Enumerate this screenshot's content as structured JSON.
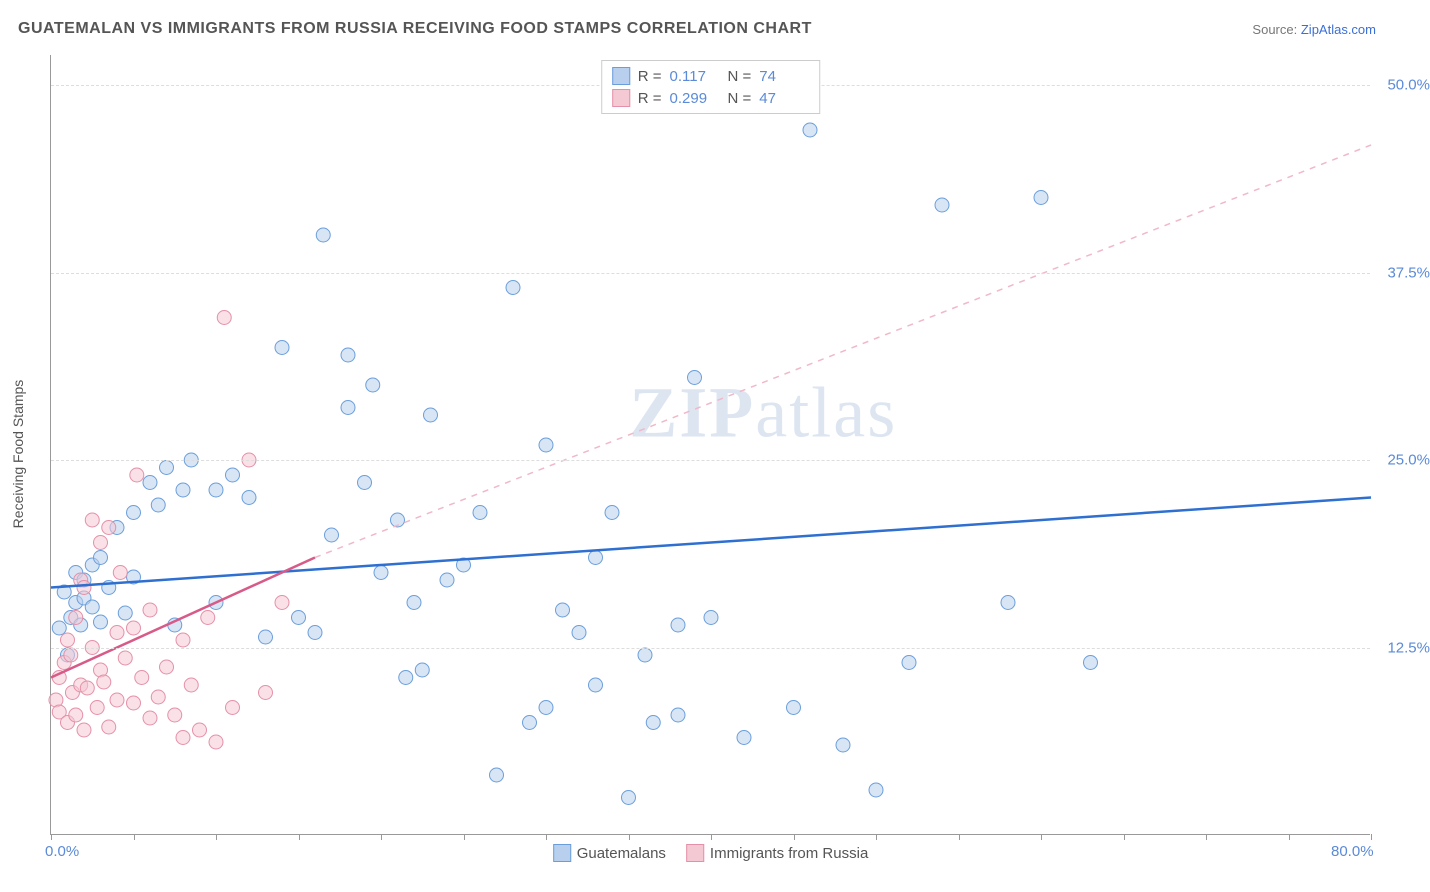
{
  "title": "GUATEMALAN VS IMMIGRANTS FROM RUSSIA RECEIVING FOOD STAMPS CORRELATION CHART",
  "source_label": "Source:",
  "source_name": "ZipAtlas.com",
  "y_axis_title": "Receiving Food Stamps",
  "watermark": "ZIPatlas",
  "chart": {
    "type": "scatter",
    "xlim": [
      0,
      80
    ],
    "ylim": [
      0,
      52
    ],
    "x_ticks": [
      0,
      5,
      10,
      15,
      20,
      25,
      30,
      35,
      40,
      45,
      50,
      55,
      60,
      65,
      70,
      75,
      80
    ],
    "x_tick_labels": {
      "0": "0.0%",
      "80": "80.0%"
    },
    "y_gridlines": [
      12.5,
      25.0,
      37.5,
      50.0
    ],
    "y_tick_labels": [
      "12.5%",
      "25.0%",
      "37.5%",
      "50.0%"
    ],
    "background_color": "#ffffff",
    "grid_color": "#dddddd",
    "axis_color": "#999999",
    "label_color": "#5a8ad8",
    "series": [
      {
        "name": "Guatemalans",
        "color_fill": "#b8d0ed",
        "color_stroke": "#6a9edb",
        "marker_radius": 7,
        "fill_opacity": 0.55,
        "R": "0.117",
        "N": "74",
        "trend": {
          "x1": 0,
          "y1": 16.5,
          "x2": 80,
          "y2": 22.5,
          "color": "#2e6fd0",
          "width": 2.5,
          "dash": "none"
        },
        "points": [
          [
            0.5,
            13.8
          ],
          [
            0.8,
            16.2
          ],
          [
            1.0,
            12.0
          ],
          [
            1.2,
            14.5
          ],
          [
            1.5,
            15.5
          ],
          [
            1.5,
            17.5
          ],
          [
            1.8,
            14.0
          ],
          [
            2.0,
            15.8
          ],
          [
            2.0,
            17.0
          ],
          [
            2.5,
            15.2
          ],
          [
            2.5,
            18.0
          ],
          [
            3.0,
            14.2
          ],
          [
            3.0,
            18.5
          ],
          [
            3.5,
            16.5
          ],
          [
            4.0,
            20.5
          ],
          [
            4.5,
            14.8
          ],
          [
            5.0,
            21.5
          ],
          [
            5.0,
            17.2
          ],
          [
            6.0,
            23.5
          ],
          [
            6.5,
            22.0
          ],
          [
            7.0,
            24.5
          ],
          [
            7.5,
            14.0
          ],
          [
            8.0,
            23.0
          ],
          [
            8.5,
            25.0
          ],
          [
            10.0,
            15.5
          ],
          [
            10.0,
            23.0
          ],
          [
            11.0,
            24.0
          ],
          [
            12.0,
            22.5
          ],
          [
            13.0,
            13.2
          ],
          [
            14.0,
            32.5
          ],
          [
            15.0,
            14.5
          ],
          [
            16.0,
            13.5
          ],
          [
            16.5,
            40.0
          ],
          [
            17.0,
            20.0
          ],
          [
            18.0,
            28.5
          ],
          [
            18.0,
            32.0
          ],
          [
            19.0,
            23.5
          ],
          [
            19.5,
            30.0
          ],
          [
            20.0,
            17.5
          ],
          [
            21.0,
            21.0
          ],
          [
            21.5,
            10.5
          ],
          [
            22.0,
            15.5
          ],
          [
            22.5,
            11.0
          ],
          [
            23.0,
            28.0
          ],
          [
            24.0,
            17.0
          ],
          [
            25.0,
            18.0
          ],
          [
            26.0,
            21.5
          ],
          [
            27.0,
            4.0
          ],
          [
            28.0,
            36.5
          ],
          [
            29.0,
            7.5
          ],
          [
            30.0,
            8.5
          ],
          [
            30.0,
            26.0
          ],
          [
            31.0,
            15.0
          ],
          [
            32.0,
            13.5
          ],
          [
            33.0,
            18.5
          ],
          [
            33.0,
            10.0
          ],
          [
            34.0,
            21.5
          ],
          [
            35.0,
            2.5
          ],
          [
            36.0,
            12.0
          ],
          [
            36.5,
            7.5
          ],
          [
            38.0,
            8.0
          ],
          [
            38.0,
            14.0
          ],
          [
            39.0,
            30.5
          ],
          [
            40.0,
            14.5
          ],
          [
            42.0,
            6.5
          ],
          [
            45.0,
            8.5
          ],
          [
            46.0,
            47.0
          ],
          [
            48.0,
            6.0
          ],
          [
            50.0,
            3.0
          ],
          [
            52.0,
            11.5
          ],
          [
            54.0,
            42.0
          ],
          [
            58.0,
            15.5
          ],
          [
            60.0,
            42.5
          ],
          [
            63.0,
            11.5
          ]
        ]
      },
      {
        "name": "Immigrants from Russia",
        "color_fill": "#f4c9d4",
        "color_stroke": "#e490a8",
        "marker_radius": 7,
        "fill_opacity": 0.55,
        "R": "0.299",
        "N": "47",
        "trend_solid": {
          "x1": 0,
          "y1": 10.5,
          "x2": 16,
          "y2": 18.5,
          "color": "#d85a88",
          "width": 2.5
        },
        "trend_dash": {
          "x1": 16,
          "y1": 18.5,
          "x2": 80,
          "y2": 46.0,
          "color": "#f0b8c8",
          "width": 1.5
        },
        "points": [
          [
            0.3,
            9.0
          ],
          [
            0.5,
            10.5
          ],
          [
            0.5,
            8.2
          ],
          [
            0.8,
            11.5
          ],
          [
            1.0,
            7.5
          ],
          [
            1.0,
            13.0
          ],
          [
            1.2,
            12.0
          ],
          [
            1.3,
            9.5
          ],
          [
            1.5,
            8.0
          ],
          [
            1.5,
            14.5
          ],
          [
            1.8,
            10.0
          ],
          [
            1.8,
            17.0
          ],
          [
            2.0,
            7.0
          ],
          [
            2.0,
            16.5
          ],
          [
            2.2,
            9.8
          ],
          [
            2.5,
            21.0
          ],
          [
            2.5,
            12.5
          ],
          [
            2.8,
            8.5
          ],
          [
            3.0,
            11.0
          ],
          [
            3.0,
            19.5
          ],
          [
            3.2,
            10.2
          ],
          [
            3.5,
            20.5
          ],
          [
            3.5,
            7.2
          ],
          [
            4.0,
            9.0
          ],
          [
            4.0,
            13.5
          ],
          [
            4.2,
            17.5
          ],
          [
            4.5,
            11.8
          ],
          [
            5.0,
            8.8
          ],
          [
            5.0,
            13.8
          ],
          [
            5.2,
            24.0
          ],
          [
            5.5,
            10.5
          ],
          [
            6.0,
            7.8
          ],
          [
            6.0,
            15.0
          ],
          [
            6.5,
            9.2
          ],
          [
            7.0,
            11.2
          ],
          [
            7.5,
            8.0
          ],
          [
            8.0,
            13.0
          ],
          [
            8.0,
            6.5
          ],
          [
            8.5,
            10.0
          ],
          [
            9.0,
            7.0
          ],
          [
            9.5,
            14.5
          ],
          [
            10.0,
            6.2
          ],
          [
            10.5,
            34.5
          ],
          [
            11.0,
            8.5
          ],
          [
            12.0,
            25.0
          ],
          [
            13.0,
            9.5
          ],
          [
            14.0,
            15.5
          ]
        ]
      }
    ]
  },
  "legend_bottom": [
    {
      "label": "Guatemalans",
      "fill": "#b8d0ed",
      "stroke": "#6a9edb"
    },
    {
      "label": "Immigrants from Russia",
      "fill": "#f4c9d4",
      "stroke": "#e490a8"
    }
  ]
}
